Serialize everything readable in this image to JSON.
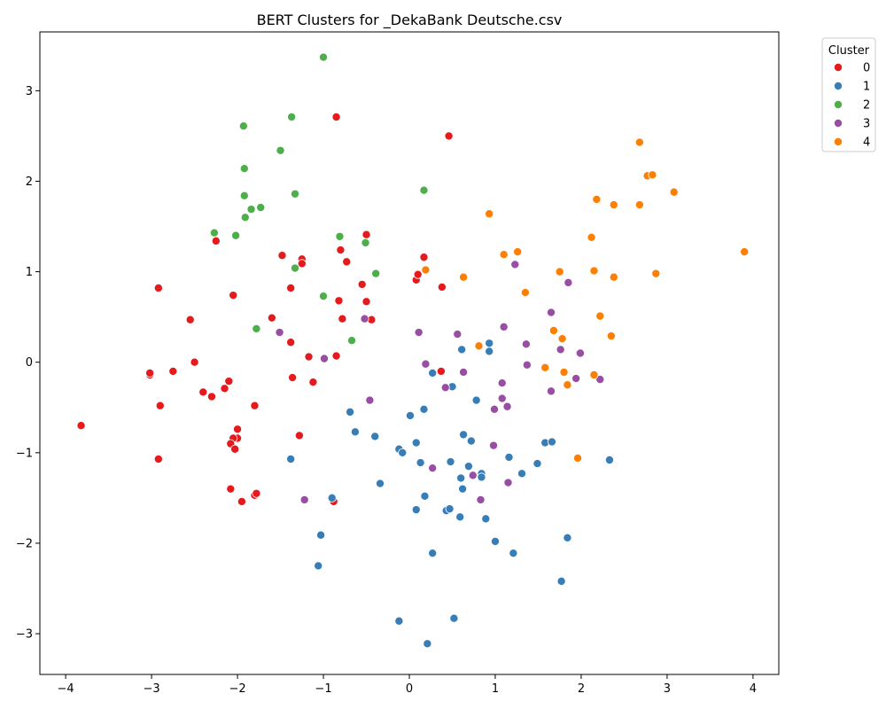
{
  "chart_data": {
    "type": "scatter",
    "title": "BERT Clusters for _DekaBank Deutsche.csv",
    "xlabel": "",
    "ylabel": "",
    "xlim": [
      -4.3,
      4.3
    ],
    "ylim": [
      -3.45,
      3.65
    ],
    "x_ticks": [
      -4,
      -3,
      -2,
      -1,
      0,
      1,
      2,
      3,
      4
    ],
    "y_ticks": [
      -3,
      -2,
      -1,
      0,
      1,
      2,
      3
    ],
    "x_tick_labels": [
      "−4",
      "−3",
      "−2",
      "−1",
      "0",
      "1",
      "2",
      "3",
      "4"
    ],
    "y_tick_labels": [
      "−3",
      "−2",
      "−1",
      "0",
      "1",
      "2",
      "3"
    ],
    "grid": false,
    "legend": {
      "title": "Cluster",
      "placement": "outside-top-right"
    },
    "series": [
      {
        "name": "0",
        "color": "#e41a1c",
        "points": [
          [
            -3.82,
            -0.7
          ],
          [
            -2.92,
            0.82
          ],
          [
            -2.92,
            -1.07
          ],
          [
            -2.9,
            -0.48
          ],
          [
            -3.02,
            -0.14
          ],
          [
            -3.02,
            -0.12
          ],
          [
            -2.75,
            -0.1
          ],
          [
            -2.55,
            0.47
          ],
          [
            -2.5,
            0.0
          ],
          [
            -2.4,
            -0.33
          ],
          [
            -2.3,
            -0.38
          ],
          [
            -2.25,
            1.34
          ],
          [
            -2.15,
            -0.29
          ],
          [
            -2.1,
            -0.21
          ],
          [
            -2.05,
            0.74
          ],
          [
            -2.0,
            -0.74
          ],
          [
            -2.0,
            -0.84
          ],
          [
            -2.05,
            -0.84
          ],
          [
            -2.08,
            -0.9
          ],
          [
            -2.03,
            -0.96
          ],
          [
            -2.08,
            -1.4
          ],
          [
            -1.95,
            -1.54
          ],
          [
            -1.8,
            -0.48
          ],
          [
            -1.8,
            -1.47
          ],
          [
            -1.78,
            -1.45
          ],
          [
            -1.6,
            0.49
          ],
          [
            -1.48,
            1.18
          ],
          [
            -1.38,
            0.82
          ],
          [
            -1.38,
            0.22
          ],
          [
            -1.36,
            -0.17
          ],
          [
            -1.25,
            1.14
          ],
          [
            -1.25,
            1.09
          ],
          [
            -1.28,
            -0.81
          ],
          [
            -1.17,
            0.06
          ],
          [
            -1.12,
            -0.22
          ],
          [
            -0.85,
            2.71
          ],
          [
            -0.85,
            0.07
          ],
          [
            -0.82,
            0.68
          ],
          [
            -0.8,
            1.24
          ],
          [
            -0.78,
            0.48
          ],
          [
            -0.73,
            1.11
          ],
          [
            -0.55,
            0.86
          ],
          [
            -0.5,
            1.41
          ],
          [
            -0.5,
            0.67
          ],
          [
            -0.44,
            0.47
          ],
          [
            -0.88,
            -1.54
          ],
          [
            0.08,
            0.91
          ],
          [
            0.1,
            0.97
          ],
          [
            0.17,
            1.16
          ],
          [
            0.38,
            0.83
          ],
          [
            0.37,
            -0.1
          ],
          [
            0.46,
            2.5
          ]
        ]
      },
      {
        "name": "1",
        "color": "#377eb8",
        "points": [
          [
            -1.38,
            -1.07
          ],
          [
            -1.03,
            -1.91
          ],
          [
            -1.06,
            -2.25
          ],
          [
            -0.9,
            -1.5
          ],
          [
            -0.69,
            -0.55
          ],
          [
            -0.63,
            -0.77
          ],
          [
            -0.4,
            -0.82
          ],
          [
            -0.34,
            -1.34
          ],
          [
            -0.12,
            -0.96
          ],
          [
            -0.08,
            -1.0
          ],
          [
            -0.12,
            -2.86
          ],
          [
            0.01,
            -0.59
          ],
          [
            0.08,
            -0.89
          ],
          [
            0.08,
            -1.63
          ],
          [
            0.13,
            -1.11
          ],
          [
            0.17,
            -0.52
          ],
          [
            0.18,
            -1.48
          ],
          [
            0.21,
            -3.11
          ],
          [
            0.27,
            -0.12
          ],
          [
            0.27,
            -2.11
          ],
          [
            0.43,
            -1.64
          ],
          [
            0.47,
            -1.62
          ],
          [
            0.48,
            -1.1
          ],
          [
            0.5,
            -0.27
          ],
          [
            0.52,
            -2.83
          ],
          [
            0.59,
            -1.71
          ],
          [
            0.6,
            -1.28
          ],
          [
            0.61,
            0.14
          ],
          [
            0.62,
            -1.4
          ],
          [
            0.63,
            -0.8
          ],
          [
            0.69,
            -1.15
          ],
          [
            0.72,
            -0.87
          ],
          [
            0.78,
            -0.42
          ],
          [
            0.84,
            -1.23
          ],
          [
            0.84,
            -1.27
          ],
          [
            0.89,
            -1.73
          ],
          [
            0.93,
            0.21
          ],
          [
            0.93,
            0.12
          ],
          [
            1.0,
            -1.98
          ],
          [
            1.16,
            -1.05
          ],
          [
            1.21,
            -2.11
          ],
          [
            1.31,
            -1.23
          ],
          [
            1.49,
            -1.12
          ],
          [
            1.58,
            -0.89
          ],
          [
            1.66,
            -0.88
          ],
          [
            1.77,
            -2.42
          ],
          [
            1.84,
            -1.94
          ],
          [
            2.33,
            -1.08
          ]
        ]
      },
      {
        "name": "2",
        "color": "#4daf4a",
        "points": [
          [
            -1.0,
            3.37
          ],
          [
            -1.37,
            2.71
          ],
          [
            -1.93,
            2.61
          ],
          [
            -1.5,
            2.34
          ],
          [
            -1.92,
            2.14
          ],
          [
            -1.92,
            1.84
          ],
          [
            -1.84,
            1.69
          ],
          [
            -1.73,
            1.71
          ],
          [
            -1.91,
            1.6
          ],
          [
            -1.33,
            1.86
          ],
          [
            -2.27,
            1.43
          ],
          [
            -2.02,
            1.4
          ],
          [
            -0.81,
            1.39
          ],
          [
            -0.51,
            1.32
          ],
          [
            -1.33,
            1.04
          ],
          [
            -0.39,
            0.98
          ],
          [
            -1.0,
            0.73
          ],
          [
            -1.78,
            0.37
          ],
          [
            -0.67,
            0.24
          ],
          [
            0.17,
            1.9
          ]
        ]
      },
      {
        "name": "3",
        "color": "#984ea3",
        "points": [
          [
            -1.51,
            0.33
          ],
          [
            -0.99,
            0.04
          ],
          [
            -0.52,
            0.48
          ],
          [
            -0.46,
            -0.42
          ],
          [
            -1.22,
            -1.52
          ],
          [
            0.11,
            0.33
          ],
          [
            0.19,
            -0.02
          ],
          [
            0.27,
            -1.17
          ],
          [
            0.42,
            -0.28
          ],
          [
            0.56,
            0.31
          ],
          [
            0.63,
            -0.11
          ],
          [
            0.74,
            -1.25
          ],
          [
            0.83,
            -1.52
          ],
          [
            0.98,
            -0.92
          ],
          [
            0.99,
            -0.52
          ],
          [
            1.08,
            -0.4
          ],
          [
            1.08,
            -0.23
          ],
          [
            1.1,
            0.39
          ],
          [
            1.14,
            -0.49
          ],
          [
            1.15,
            -1.33
          ],
          [
            1.23,
            1.08
          ],
          [
            1.36,
            0.2
          ],
          [
            1.37,
            -0.03
          ],
          [
            1.65,
            0.55
          ],
          [
            1.65,
            -0.32
          ],
          [
            1.76,
            0.14
          ],
          [
            1.85,
            0.88
          ],
          [
            1.94,
            -0.18
          ],
          [
            1.98,
            0.1
          ],
          [
            1.99,
            0.1
          ],
          [
            2.22,
            -0.19
          ]
        ]
      },
      {
        "name": "4",
        "color": "#ff7f00",
        "points": [
          [
            0.19,
            1.02
          ],
          [
            0.63,
            0.94
          ],
          [
            0.81,
            0.18
          ],
          [
            0.93,
            1.64
          ],
          [
            1.1,
            1.19
          ],
          [
            1.26,
            1.22
          ],
          [
            1.35,
            0.77
          ],
          [
            1.58,
            -0.06
          ],
          [
            1.68,
            0.35
          ],
          [
            1.75,
            1.0
          ],
          [
            1.78,
            0.26
          ],
          [
            1.8,
            -0.11
          ],
          [
            1.84,
            -0.25
          ],
          [
            1.96,
            -1.06
          ],
          [
            2.12,
            1.38
          ],
          [
            2.15,
            1.01
          ],
          [
            2.15,
            -0.14
          ],
          [
            2.18,
            1.8
          ],
          [
            2.22,
            0.51
          ],
          [
            2.35,
            0.29
          ],
          [
            2.38,
            1.74
          ],
          [
            2.38,
            0.94
          ],
          [
            2.68,
            2.43
          ],
          [
            2.68,
            1.74
          ],
          [
            2.77,
            2.06
          ],
          [
            2.83,
            2.07
          ],
          [
            2.87,
            0.98
          ],
          [
            3.08,
            1.88
          ],
          [
            3.9,
            1.22
          ]
        ]
      }
    ]
  }
}
